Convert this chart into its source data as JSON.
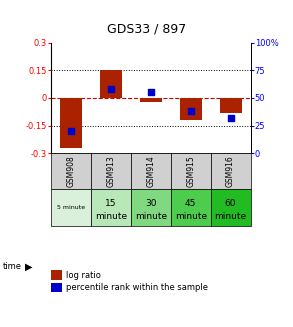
{
  "title": "GDS33 / 897",
  "samples": [
    "GSM908",
    "GSM913",
    "GSM914",
    "GSM915",
    "GSM916"
  ],
  "time_labels_line1": [
    "5 minute",
    "15",
    "30",
    "45",
    "60"
  ],
  "time_labels_line2": [
    "",
    "minute",
    "minute",
    "minute",
    "minute"
  ],
  "time_bg_colors": [
    "#daf0da",
    "#b8e8b8",
    "#80d880",
    "#4dcc4d",
    "#22bb22"
  ],
  "log_ratios": [
    -0.27,
    0.15,
    -0.02,
    -0.12,
    -0.08
  ],
  "percentile_ranks": [
    20,
    58,
    55,
    38,
    32
  ],
  "ylim_left": [
    -0.3,
    0.3
  ],
  "ylim_right": [
    0,
    100
  ],
  "yticks_left": [
    -0.3,
    -0.15,
    0,
    0.15,
    0.3
  ],
  "ytick_labels_left": [
    "-0.3",
    "-0.15",
    "0",
    "0.15",
    "0.3"
  ],
  "yticks_right": [
    0,
    25,
    50,
    75,
    100
  ],
  "ytick_labels_right": [
    "0",
    "25",
    "50",
    "75",
    "100%"
  ],
  "bar_color": "#aa2200",
  "dot_color": "#0000cc",
  "zero_line_color": "#cc0000",
  "dot_line_color": "black",
  "background_color": "#ffffff",
  "sample_bg_color": "#d0d0d0",
  "legend_red_label": "log ratio",
  "legend_blue_label": "percentile rank within the sample"
}
